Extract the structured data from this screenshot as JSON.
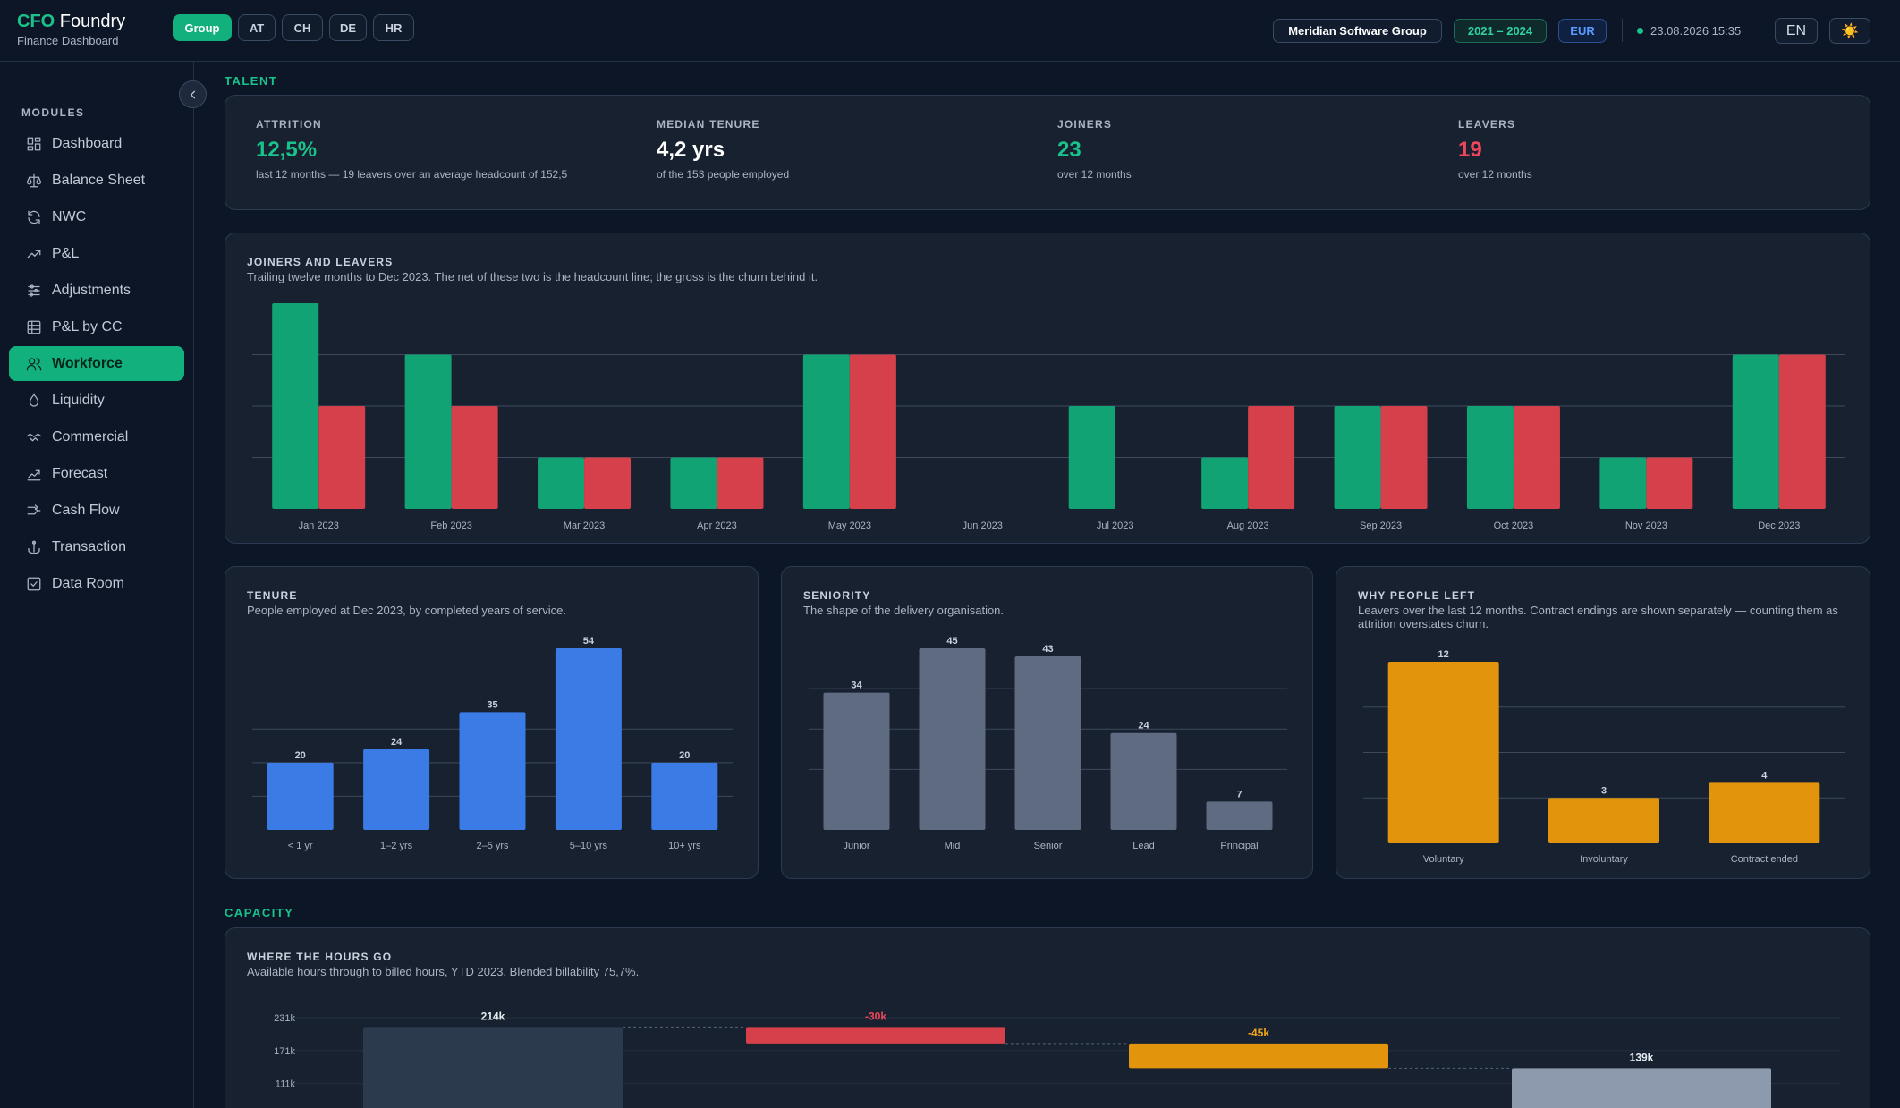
{
  "app": {
    "brand_accent": "CFO",
    "brand_rest": "Foundry",
    "subtitle": "Finance Dashboard"
  },
  "scope_tabs": [
    {
      "label": "Group",
      "active": true
    },
    {
      "label": "AT",
      "active": false
    },
    {
      "label": "CH",
      "active": false
    },
    {
      "label": "DE",
      "active": false
    },
    {
      "label": "HR",
      "active": false
    }
  ],
  "header": {
    "company": "Meridian Software Group",
    "years": "2021 – 2024",
    "currency": "EUR",
    "datetime": "23.08.2026 15:35",
    "language": "EN",
    "theme_icon": "☀️"
  },
  "sidebar": {
    "title": "MODULES",
    "items": [
      {
        "label": "Dashboard",
        "icon": "dashboard-icon"
      },
      {
        "label": "Balance Sheet",
        "icon": "scale-icon"
      },
      {
        "label": "NWC",
        "icon": "refresh-icon"
      },
      {
        "label": "P&L",
        "icon": "trend-up-icon"
      },
      {
        "label": "Adjustments",
        "icon": "sliders-icon"
      },
      {
        "label": "P&L by CC",
        "icon": "table-icon"
      },
      {
        "label": "Workforce",
        "icon": "users-icon",
        "active": true
      },
      {
        "label": "Liquidity",
        "icon": "droplet-icon"
      },
      {
        "label": "Commercial",
        "icon": "handshake-icon"
      },
      {
        "label": "Forecast",
        "icon": "chart-line-icon"
      },
      {
        "label": "Cash Flow",
        "icon": "arrows-split-icon"
      },
      {
        "label": "Transaction",
        "icon": "anchor-icon"
      },
      {
        "label": "Data Room",
        "icon": "checkbox-icon"
      }
    ]
  },
  "sections": {
    "talent": "TALENT",
    "capacity": "CAPACITY"
  },
  "kpis": [
    {
      "label": "ATTRITION",
      "value": "12,5%",
      "sub": "last 12 months — 19 leavers over an average headcount of 152,5",
      "color": "#19c38b"
    },
    {
      "label": "MEDIAN TENURE",
      "value": "4,2 yrs",
      "sub": "of the 153 people employed",
      "color": "#ffffff"
    },
    {
      "label": "JOINERS",
      "value": "23",
      "sub": "over 12 months",
      "color": "#19c38b"
    },
    {
      "label": "LEAVERS",
      "value": "19",
      "sub": "over 12 months",
      "color": "#f0475a"
    }
  ],
  "charts": {
    "joiners": {
      "title": "JOINERS AND LEAVERS",
      "subtitle": "Trailing twelve months to Dec 2023. The net of these two is the headcount line; the gross is the churn behind it."
    },
    "tenure": {
      "title": "TENURE",
      "subtitle": "People employed at Dec 2023, by completed years of service."
    },
    "seniority": {
      "title": "SENIORITY",
      "subtitle": "The shape of the delivery organisation."
    },
    "why": {
      "title": "WHY PEOPLE LEFT",
      "subtitle": "Leavers over the last 12 months. Contract endings are shown separately — counting them as attrition overstates churn."
    },
    "hours": {
      "title": "WHERE THE HOURS GO",
      "subtitle": "Available hours through to billed hours, YTD 2023. Blended billability 75,7%."
    }
  },
  "chart_data": [
    {
      "type": "bar",
      "id": "joiners",
      "categories": [
        "Jan 2023",
        "Feb 2023",
        "Mar 2023",
        "Apr 2023",
        "May 2023",
        "Jun 2023",
        "Jul 2023",
        "Aug 2023",
        "Sep 2023",
        "Oct 2023",
        "Nov 2023",
        "Dec 2023"
      ],
      "series": [
        {
          "values": [
            4,
            3,
            1,
            1,
            3,
            0,
            2,
            1,
            2,
            2,
            1,
            3
          ],
          "color": "#12a374"
        },
        {
          "values": [
            2,
            2,
            1,
            1,
            3,
            0,
            0,
            2,
            2,
            2,
            1,
            3
          ],
          "color": "#d6404a"
        }
      ],
      "ylim": [
        0,
        4
      ],
      "grid": true
    },
    {
      "type": "bar",
      "id": "tenure",
      "categories": [
        "< 1 yr",
        "1–2 yrs",
        "2–5 yrs",
        "5–10 yrs",
        "10+ yrs"
      ],
      "values": [
        20,
        24,
        35,
        54,
        20
      ],
      "color": "#3a7be6",
      "ylim": [
        0,
        54
      ],
      "grid": true
    },
    {
      "type": "bar",
      "id": "seniority",
      "categories": [
        "Junior",
        "Mid",
        "Senior",
        "Lead",
        "Principal"
      ],
      "values": [
        34,
        45,
        43,
        24,
        7
      ],
      "color": "#5f6b80",
      "ylim": [
        0,
        45
      ],
      "grid": true
    },
    {
      "type": "bar",
      "id": "why",
      "categories": [
        "Voluntary",
        "Involuntary",
        "Contract ended"
      ],
      "values": [
        12,
        3,
        4
      ],
      "color": "#e2950c",
      "ylim": [
        0,
        12
      ],
      "grid": true
    },
    {
      "type": "bar",
      "id": "hours",
      "subtype": "waterfall",
      "steps": [
        {
          "label": "214k",
          "value": 214,
          "kind": "total",
          "color": "#2c3a4d",
          "label_color": "#e6ebf2"
        },
        {
          "label": "-30k",
          "value": -30,
          "kind": "delta",
          "color": "#d6404a",
          "label_color": "#f0475a"
        },
        {
          "label": "-45k",
          "value": -45,
          "kind": "delta",
          "color": "#e2950c",
          "label_color": "#f1a51a"
        },
        {
          "label": "139k",
          "value": 139,
          "kind": "total",
          "color": "#8d99ad",
          "label_color": "#e6ebf2"
        }
      ],
      "y_ticks": [
        "231k",
        "171k",
        "111k"
      ],
      "y_tick_values": [
        231,
        171,
        111
      ]
    }
  ]
}
